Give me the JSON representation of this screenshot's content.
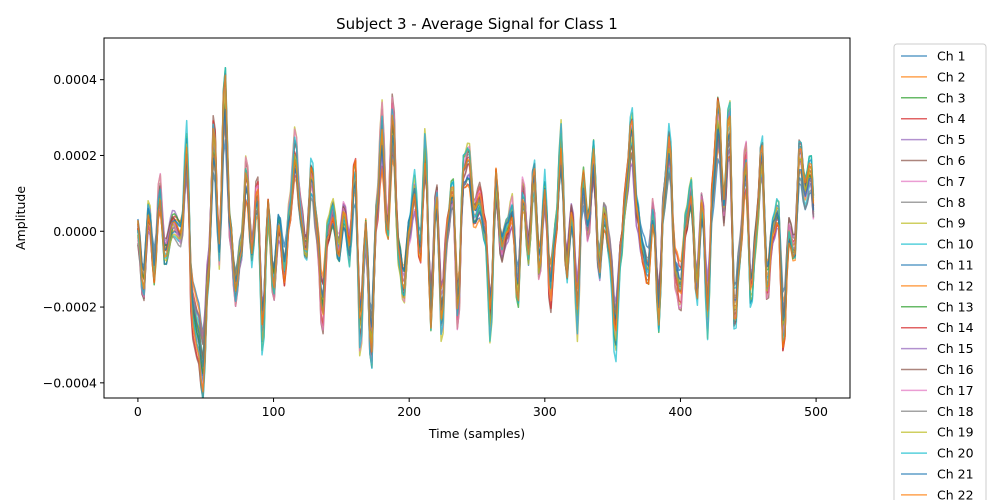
{
  "chart_data": {
    "type": "line",
    "title": "Subject 3 - Average Signal for Class 1",
    "xlabel": "Time (samples)",
    "ylabel": "Amplitude",
    "xlim": [
      -25,
      525
    ],
    "ylim": [
      -0.00044,
      0.00051
    ],
    "xticks": [
      0,
      100,
      200,
      300,
      400,
      500
    ],
    "xtick_labels": [
      "0",
      "100",
      "200",
      "300",
      "400",
      "500"
    ],
    "yticks": [
      -0.0004,
      -0.0002,
      0.0,
      0.0002,
      0.0004
    ],
    "ytick_labels": [
      "−0.0004",
      "−0.0002",
      "0.0000",
      "0.0002",
      "0.0004"
    ],
    "grid": false,
    "legend_position": "outside-right",
    "base_waveform": {
      "x": [
        0,
        4,
        8,
        12,
        16,
        20,
        26,
        32,
        36,
        40,
        44,
        48,
        52,
        56,
        60,
        64,
        68,
        72,
        76,
        80,
        84,
        88,
        92,
        96,
        100,
        104,
        108,
        112,
        116,
        120,
        124,
        128,
        132,
        136,
        140,
        144,
        148,
        152,
        156,
        160,
        164,
        168,
        172,
        176,
        180,
        184,
        188,
        192,
        196,
        200,
        204,
        208,
        212,
        216,
        220,
        224,
        228,
        232,
        236,
        240,
        244,
        248,
        252,
        256,
        260,
        264,
        268,
        272,
        276,
        280,
        284,
        288,
        292,
        296,
        300,
        304,
        308,
        312,
        316,
        320,
        324,
        328,
        332,
        336,
        340,
        344,
        348,
        352,
        356,
        360,
        364,
        368,
        372,
        376,
        380,
        384,
        388,
        392,
        396,
        400,
        404,
        408,
        412,
        416,
        420,
        424,
        428,
        432,
        436,
        440,
        444,
        448,
        452,
        456,
        460,
        464,
        468,
        472,
        476,
        480,
        484,
        488,
        492,
        496,
        499
      ],
      "y": [
        0.0,
        -0.00015,
        5e-05,
        -0.0001,
        0.0001,
        -5e-05,
        2e-05,
        -1e-05,
        0.0002,
        -0.0002,
        -0.00025,
        -0.00035,
        -0.0001,
        0.00025,
        -5e-05,
        0.00035,
        0.0,
        -0.00015,
        -5e-05,
        0.00015,
        -5e-05,
        0.0001,
        -0.00025,
        5e-05,
        -0.00015,
        2e-05,
        -0.0001,
        5e-05,
        0.0002,
        5e-05,
        -5e-05,
        0.00015,
        0.0,
        -0.0002,
        0.0,
        5e-05,
        -5e-05,
        5e-05,
        -5e-05,
        0.00015,
        -0.00025,
        0.0,
        -0.0003,
        5e-05,
        0.00025,
        0.0,
        0.00028,
        -5e-05,
        -0.00015,
        0.0,
        0.0001,
        -5e-05,
        0.0002,
        -0.0002,
        0.0001,
        -0.00022,
        0.0,
        0.0001,
        -0.0002,
        0.00015,
        0.00018,
        5e-05,
        8e-05,
        0.0,
        -0.00022,
        0.00012,
        -5e-05,
        0.0,
        5e-05,
        -0.00015,
        0.0001,
        -5e-05,
        0.00015,
        -0.0001,
        0.0001,
        -0.00015,
        0.0,
        0.00022,
        -0.0001,
        5e-05,
        -0.0002,
        0.00012,
        0.0,
        0.00018,
        -0.0001,
        5e-05,
        -5e-05,
        -0.00025,
        -5e-05,
        0.0001,
        0.00025,
        5e-05,
        -5e-05,
        -0.0001,
        5e-05,
        -0.0002,
        0.0001,
        0.00022,
        -0.0001,
        -0.00015,
        2e-05,
        0.0001,
        -0.00015,
        8e-05,
        -0.0002,
        0.00012,
        0.00028,
        5e-05,
        0.00028,
        -0.00022,
        -5e-05,
        0.00018,
        -0.00015,
        0.0,
        0.0002,
        -0.00015,
        0.0,
        5e-05,
        -0.00025,
        0.0,
        -5e-05,
        0.0002,
        0.0001,
        0.00015,
        2e-05
      ]
    },
    "series": [
      {
        "name": "Ch 1",
        "color": "#1f77b4"
      },
      {
        "name": "Ch 2",
        "color": "#ff7f0e"
      },
      {
        "name": "Ch 3",
        "color": "#2ca02c"
      },
      {
        "name": "Ch 4",
        "color": "#d62728"
      },
      {
        "name": "Ch 5",
        "color": "#9467bd"
      },
      {
        "name": "Ch 6",
        "color": "#8c564b"
      },
      {
        "name": "Ch 7",
        "color": "#e377c2"
      },
      {
        "name": "Ch 8",
        "color": "#7f7f7f"
      },
      {
        "name": "Ch 9",
        "color": "#bcbd22"
      },
      {
        "name": "Ch 10",
        "color": "#17becf"
      },
      {
        "name": "Ch 11",
        "color": "#1f77b4"
      },
      {
        "name": "Ch 12",
        "color": "#ff7f0e"
      },
      {
        "name": "Ch 13",
        "color": "#2ca02c"
      },
      {
        "name": "Ch 14",
        "color": "#d62728"
      },
      {
        "name": "Ch 15",
        "color": "#9467bd"
      },
      {
        "name": "Ch 16",
        "color": "#8c564b"
      },
      {
        "name": "Ch 17",
        "color": "#e377c2"
      },
      {
        "name": "Ch 18",
        "color": "#7f7f7f"
      },
      {
        "name": "Ch 19",
        "color": "#bcbd22"
      },
      {
        "name": "Ch 20",
        "color": "#17becf"
      },
      {
        "name": "Ch 21",
        "color": "#1f77b4"
      },
      {
        "name": "Ch 22",
        "color": "#ff7f0e"
      }
    ]
  }
}
